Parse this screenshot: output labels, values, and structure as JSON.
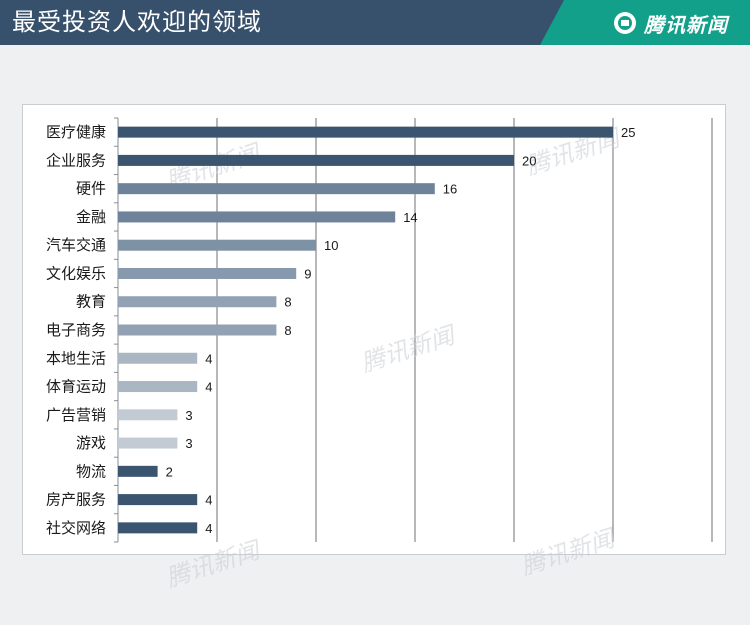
{
  "header": {
    "title": "最受投资人欢迎的领域",
    "brand": "腾讯新闻",
    "brand_icon": "tencent-news-logo-icon"
  },
  "colors": {
    "header_bg": "#37516d",
    "brand_bg": "#12a08a"
  },
  "watermark": "腾讯新闻",
  "chart_data": {
    "type": "bar",
    "orientation": "horizontal",
    "title": "",
    "xlabel": "",
    "ylabel": "",
    "xlim": [
      0,
      30
    ],
    "grid": true,
    "legend": "none",
    "categories": [
      "医疗健康",
      "企业服务",
      "硬件",
      "金融",
      "汽车交通",
      "文化娱乐",
      "教育",
      "电子商务",
      "本地生活",
      "体育运动",
      "广告营销",
      "游戏",
      "物流",
      "房产服务",
      "社交网络"
    ],
    "values": [
      25,
      20,
      16,
      14,
      10,
      9,
      8,
      8,
      4,
      4,
      3,
      3,
      2,
      4,
      4
    ],
    "bar_colors": [
      "#3b5470",
      "#3b5470",
      "#6e8399",
      "#6e8399",
      "#7e92a6",
      "#8799ac",
      "#92a2b4",
      "#92a2b4",
      "#aab7c3",
      "#aab7c3",
      "#c2cbd3",
      "#c2cbd3",
      "#3b5470",
      "#3b5470",
      "#3b5470"
    ]
  }
}
